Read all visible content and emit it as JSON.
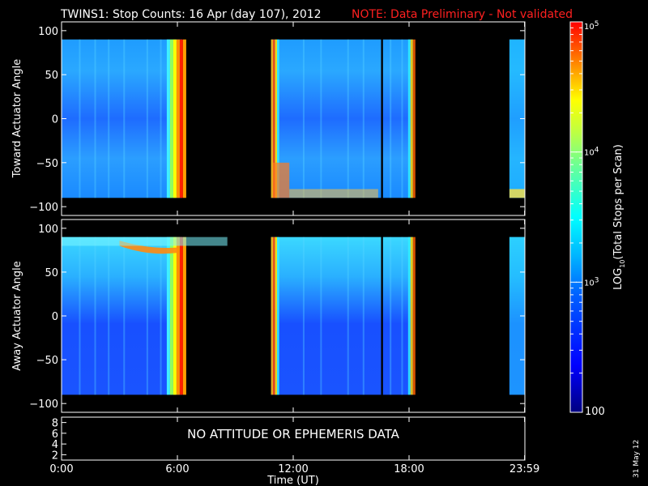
{
  "header": {
    "title": "TWINS1: Stop Counts: 16 Apr (day 107), 2012",
    "note": "NOTE: Data Preliminary - Not validated"
  },
  "colorbar": {
    "label_prefix": "LOG",
    "label_sub": "10",
    "label_suffix": "(Total Stops per Scan)",
    "ticks": [
      {
        "base": "10",
        "exp": "5",
        "value": 100000
      },
      {
        "base": "10",
        "exp": "4",
        "value": 10000
      },
      {
        "base": "10",
        "exp": "3",
        "value": 1000
      },
      {
        "plain": "100",
        "value": 100
      }
    ],
    "scale": "log",
    "range": [
      100,
      100000
    ]
  },
  "footer": {
    "date_stamp": "31 May 12"
  },
  "chart_data": [
    {
      "type": "heatmap",
      "title": "TWINS1: Stop Counts: 16 Apr (day 107), 2012",
      "ylabel": "Toward Actuator Angle",
      "xlabel": "",
      "ylim": [
        -110,
        110
      ],
      "yticks": [
        "100",
        "50",
        "0",
        "-50",
        "-100"
      ],
      "data_angle_range": [
        -90,
        90
      ],
      "data_time_segments_hours": [
        [
          0.0,
          6.25
        ],
        [
          10.85,
          16.55
        ],
        [
          16.65,
          18.2
        ],
        [
          23.2,
          23.98
        ]
      ],
      "data_gaps_hours": [
        [
          6.25,
          10.85
        ],
        [
          16.55,
          16.65
        ],
        [
          18.2,
          23.2
        ]
      ],
      "high_count_features": [
        {
          "time_hours": 6.0,
          "angles": [
            -90,
            90
          ],
          "level": "1e5"
        },
        {
          "time_hours": 11.0,
          "angles": [
            -90,
            -50
          ],
          "level": "~5e4"
        }
      ],
      "background_level": "~1e3"
    },
    {
      "type": "heatmap",
      "ylabel": "Away Actuator Angle",
      "xlabel": "",
      "ylim": [
        -110,
        110
      ],
      "yticks": [
        "100",
        "50",
        "0",
        "-50",
        "-100"
      ],
      "data_angle_range": [
        -90,
        90
      ],
      "data_time_segments_hours": [
        [
          0.0,
          6.25
        ],
        [
          10.85,
          16.55
        ],
        [
          16.65,
          18.2
        ],
        [
          23.2,
          23.98
        ]
      ],
      "high_count_features": [
        {
          "time_hours": 6.0,
          "angles": [
            -90,
            90
          ],
          "level": "1e5"
        },
        {
          "time_hours": 4.0,
          "angles": [
            70,
            80
          ],
          "level": "1e5"
        }
      ],
      "background_level": "~5e2"
    },
    {
      "type": "line",
      "ylim": [
        1,
        9
      ],
      "yticks": [
        "8",
        "6",
        "4",
        "2"
      ],
      "message": "NO ATTITUDE OR EPHEMERIS DATA",
      "xlabel": "Time (UT)",
      "xticks": [
        "0:00",
        "6:00",
        "12:00",
        "18:00",
        "23:59"
      ],
      "xlim_hours": [
        0,
        24
      ]
    }
  ]
}
